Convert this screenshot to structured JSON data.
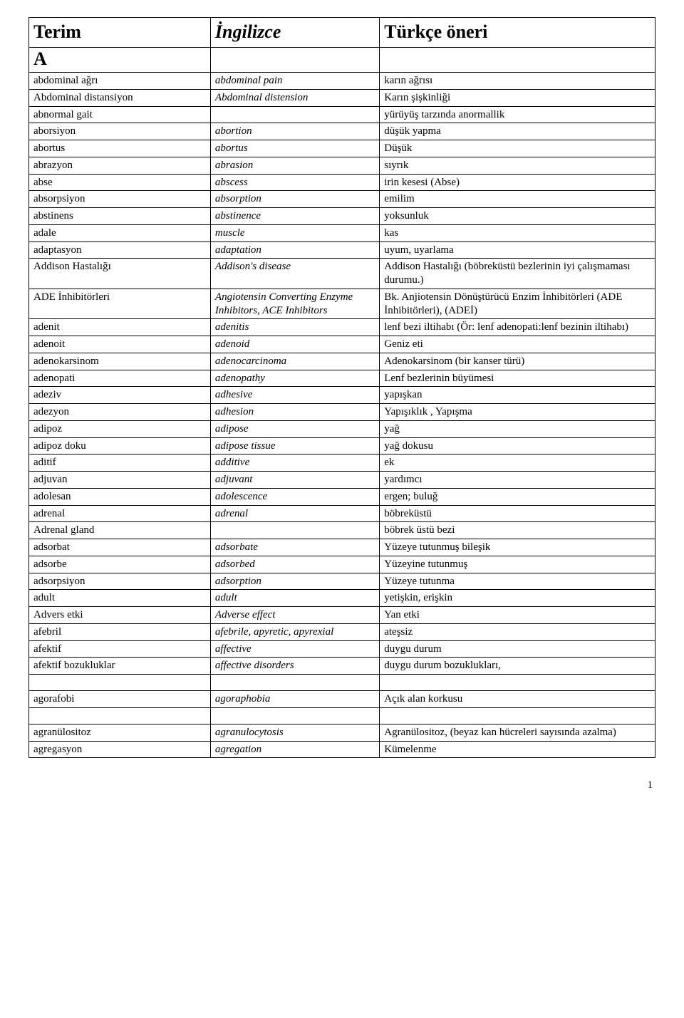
{
  "headers": {
    "col1": "Terim",
    "col2": "İngilizce",
    "col3": "Türkçe öneri"
  },
  "section_letter": "A",
  "rows": [
    {
      "t": "abdominal ağrı",
      "e": "abdominal pain",
      "tr": "karın ağrısı"
    },
    {
      "t": "Abdominal distansiyon",
      "e": "Abdominal distension",
      "tr": "Karın şişkinliği"
    },
    {
      "t": "abnormal gait",
      "e": "",
      "tr": "yürüyüş tarzında anormallik"
    },
    {
      "t": "aborsiyon",
      "e": "abortion",
      "tr": "düşük yapma"
    },
    {
      "t": "abortus",
      "e": "abortus",
      "tr": "Düşük"
    },
    {
      "t": "abrazyon",
      "e": "abrasion",
      "tr": "sıyrık"
    },
    {
      "t": "abse",
      "e": "abscess",
      "tr": "irin kesesi (Abse)"
    },
    {
      "t": "absorpsiyon",
      "e": "absorption",
      "tr": "emilim"
    },
    {
      "t": "abstinens",
      "e": "abstinence",
      "tr": "yoksunluk"
    },
    {
      "t": "adale",
      "e": "muscle",
      "tr": "kas"
    },
    {
      "t": "adaptasyon",
      "e": "adaptation",
      "tr": "uyum, uyarlama"
    },
    {
      "t": "Addison Hastalığı",
      "e": "Addison's disease",
      "tr": "Addison Hastalığı (böbreküstü bezlerinin iyi çalışmaması durumu.)"
    },
    {
      "t": "ADE İnhibitörleri",
      "e": "Angiotensin Converting Enzyme Inhibitors, ACE Inhibitors",
      "tr": "Bk. Anjiotensin Dönüştürücü Enzim İnhibitörleri (ADE İnhibitörleri), (ADEİ)"
    },
    {
      "t": "adenit",
      "e": "adenitis",
      "tr": "lenf bezi iltihabı (Ör: lenf adenopati:lenf bezinin iltihabı)"
    },
    {
      "t": "adenoit",
      "e": "adenoid",
      "tr": "Geniz eti"
    },
    {
      "t": "adenokarsinom",
      "e": "adenocarcinoma",
      "tr": "Adenokarsinom (bir kanser türü)"
    },
    {
      "t": "adenopati",
      "e": "adenopathy",
      "tr": "Lenf bezlerinin büyümesi"
    },
    {
      "t": "adeziv",
      "e": "adhesive",
      "tr": "yapışkan"
    },
    {
      "t": "adezyon",
      "e": "adhesion",
      "tr": "Yapışıklık , Yapışma"
    },
    {
      "t": "adipoz",
      "e": "adipose",
      "tr": "yağ"
    },
    {
      "t": "adipoz doku",
      "e": "adipose tissue",
      "tr": "yağ dokusu"
    },
    {
      "t": "aditif",
      "e": "additive",
      "tr": "ek"
    },
    {
      "t": "adjuvan",
      "e": "adjuvant",
      "tr": "yardımcı"
    },
    {
      "t": "adolesan",
      "e": "adolescence",
      "tr": "ergen; buluğ"
    },
    {
      "t": "adrenal",
      "e": "adrenal",
      "tr": "böbreküstü"
    },
    {
      "t": "Adrenal gland",
      "e": "",
      "tr": "böbrek üstü bezi"
    },
    {
      "t": "adsorbat",
      "e": "adsorbate",
      "tr": "Yüzeye tutunmuş bileşik"
    },
    {
      "t": "adsorbe",
      "e": "adsorbed",
      "tr": "Yüzeyine tutunmuş"
    },
    {
      "t": "adsorpsiyon",
      "e": "adsorption",
      "tr": "Yüzeye tutunma"
    },
    {
      "t": "adult",
      "e": "adult",
      "tr": "yetişkin, erişkin"
    },
    {
      "t": "Advers etki",
      "e": "Adverse effect",
      "tr": "Yan etki"
    },
    {
      "t": "afebril",
      "e": "afebrile, apyretic, apyrexial",
      "tr": "ateşsiz"
    },
    {
      "t": "afektif",
      "e": "affective",
      "tr": "duygu durum"
    },
    {
      "t": "afektif   bozukluklar",
      "e": "affective disorders",
      "tr": "duygu durum bozuklukları,"
    }
  ],
  "rows2": [
    {
      "t": "agorafobi",
      "e": "agoraphobia",
      "tr": "Açık alan korkusu"
    }
  ],
  "rows3": [
    {
      "t": "agranülositoz",
      "e": "agranulocytosis",
      "tr": "Agranülositoz,\n (beyaz kan hücreleri sayısında azalma)"
    },
    {
      "t": "agregasyon",
      "e": "agregation",
      "tr": "Kümelenme"
    }
  ],
  "page_number": "1"
}
